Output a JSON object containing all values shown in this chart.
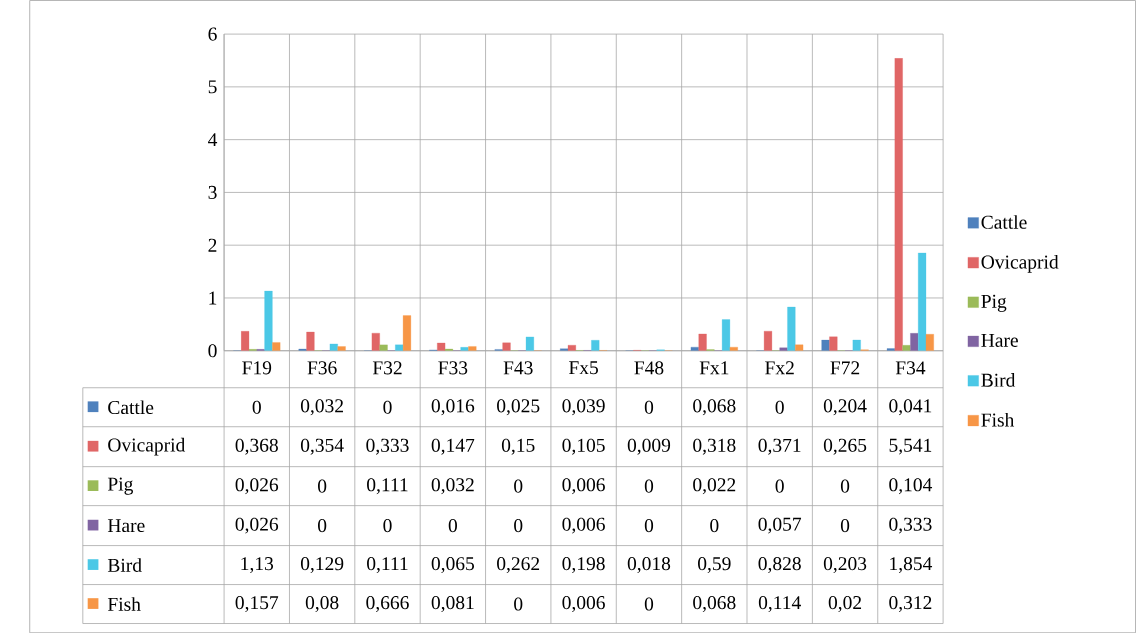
{
  "chart_data": {
    "type": "bar",
    "categories": [
      "F19",
      "F36",
      "F32",
      "F33",
      "F43",
      "Fx5",
      "F48",
      "Fx1",
      "Fx2",
      "F72",
      "F34"
    ],
    "series": [
      {
        "name": "Cattle",
        "color": "#4f81bd",
        "values": [
          0,
          0.032,
          0,
          0.016,
          0.025,
          0.039,
          0,
          0.068,
          0,
          0.204,
          0.041
        ],
        "value_labels": [
          "0",
          "0,032",
          "0",
          "0,016",
          "0,025",
          "0,039",
          "0",
          "0,068",
          "0",
          "0,204",
          "0,041"
        ]
      },
      {
        "name": "Ovicaprid",
        "color": "#e06666",
        "values": [
          0.368,
          0.354,
          0.333,
          0.147,
          0.15,
          0.105,
          0.009,
          0.318,
          0.371,
          0.265,
          5.541
        ],
        "value_labels": [
          "0,368",
          "0,354",
          "0,333",
          "0,147",
          "0,15",
          "0,105",
          "0,009",
          "0,318",
          "0,371",
          "0,265",
          "5,541"
        ]
      },
      {
        "name": "Pig",
        "color": "#9bbb59",
        "values": [
          0.026,
          0,
          0.111,
          0.032,
          0,
          0.006,
          0,
          0.022,
          0,
          0,
          0.104
        ],
        "value_labels": [
          "0,026",
          "0",
          "0,111",
          "0,032",
          "0",
          "0,006",
          "0",
          "0,022",
          "0",
          "0",
          "0,104"
        ]
      },
      {
        "name": "Hare",
        "color": "#8064a2",
        "values": [
          0.026,
          0,
          0,
          0,
          0,
          0.006,
          0,
          0,
          0.057,
          0,
          0.333
        ],
        "value_labels": [
          "0,026",
          "0",
          "0",
          "0",
          "0",
          "0,006",
          "0",
          "0",
          "0,057",
          "0",
          "0,333"
        ]
      },
      {
        "name": "Bird",
        "color": "#4bc8e6",
        "values": [
          1.13,
          0.129,
          0.111,
          0.065,
          0.262,
          0.198,
          0.018,
          0.59,
          0.828,
          0.203,
          1.854
        ],
        "value_labels": [
          "1,13",
          "0,129",
          "0,111",
          "0,065",
          "0,262",
          "0,198",
          "0,018",
          "0,59",
          "0,828",
          "0,203",
          "1,854"
        ]
      },
      {
        "name": "Fish",
        "color": "#f79646",
        "values": [
          0.157,
          0.08,
          0.666,
          0.081,
          0,
          0.006,
          0,
          0.068,
          0.114,
          0.02,
          0.312
        ],
        "value_labels": [
          "0,157",
          "0,08",
          "0,666",
          "0,081",
          "0",
          "0,006",
          "0",
          "0,068",
          "0,114",
          "0,02",
          "0,312"
        ]
      }
    ],
    "ylim": [
      0,
      6
    ],
    "yticks": [
      0,
      1,
      2,
      3,
      4,
      5,
      6
    ],
    "grid": true,
    "legend": "right"
  }
}
